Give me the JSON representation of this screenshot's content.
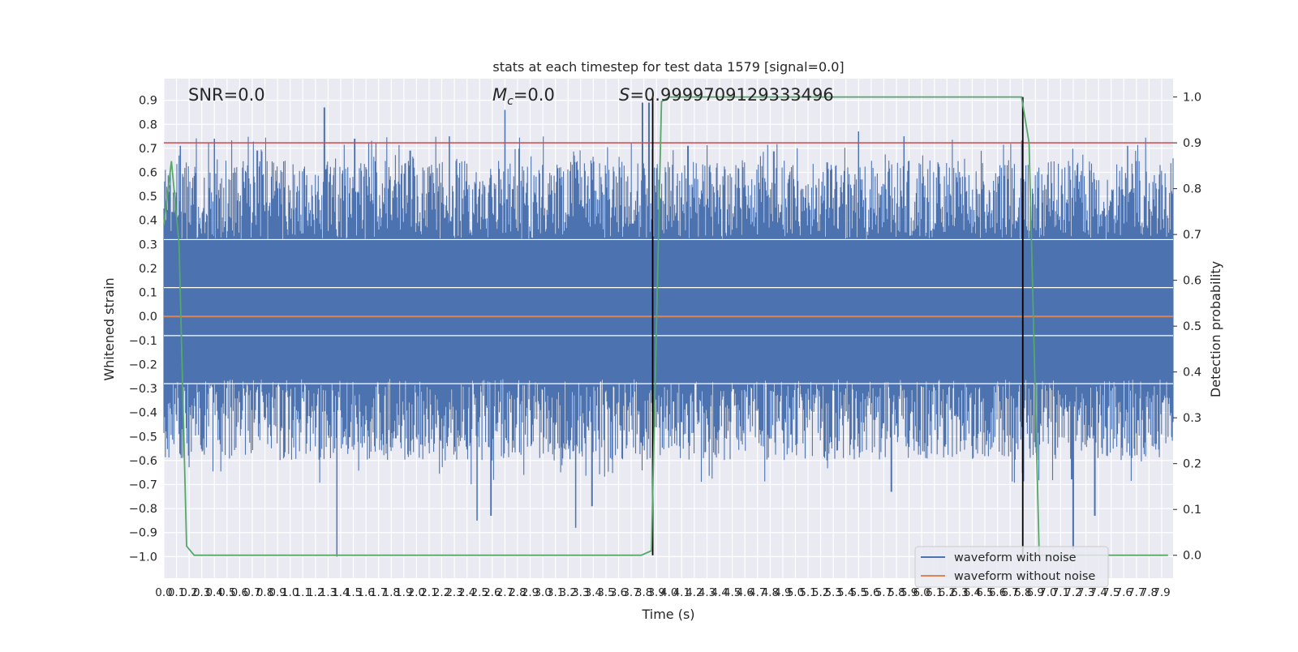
{
  "chart_data": {
    "type": "line",
    "title": "stats at each timestep for test data 1579 [signal=0.0]",
    "xlabel": "Time (s)",
    "ylabel_left": "Whitened strain",
    "ylabel_right": "Detection probability",
    "xlim": [
      0.0,
      7.99
    ],
    "ylim_left": [
      -1.09,
      0.99
    ],
    "ylim_right": [
      -0.05,
      1.04
    ],
    "x_ticks": [
      "0.0",
      "0.1",
      "0.2",
      "0.3",
      "0.4",
      "0.5",
      "0.6",
      "0.7",
      "0.8",
      "0.9",
      "1.0",
      "1.1",
      "1.2",
      "1.3",
      "1.4",
      "1.5",
      "1.6",
      "1.7",
      "1.8",
      "1.9",
      "2.0",
      "2.1",
      "2.2",
      "2.3",
      "2.4",
      "2.5",
      "2.6",
      "2.7",
      "2.8",
      "2.9",
      "3.0",
      "3.1",
      "3.2",
      "3.3",
      "3.4",
      "3.5",
      "3.6",
      "3.7",
      "3.8",
      "3.9",
      "4.0",
      "4.1",
      "4.2",
      "4.3",
      "4.4",
      "4.5",
      "4.6",
      "4.7",
      "4.8",
      "4.9",
      "5.0",
      "5.1",
      "5.2",
      "5.3",
      "5.4",
      "5.5",
      "5.6",
      "5.7",
      "5.8",
      "5.9",
      "6.0",
      "6.1",
      "6.2",
      "6.3",
      "6.4",
      "6.5",
      "6.6",
      "6.7",
      "6.8",
      "6.9",
      "7.0",
      "7.1",
      "7.2",
      "7.3",
      "7.4",
      "7.5",
      "7.6",
      "7.7",
      "7.8",
      "7.9"
    ],
    "y_ticks_left": [
      "0.9",
      "0.8",
      "0.7",
      "0.6",
      "0.5",
      "0.4",
      "0.3",
      "0.2",
      "0.1",
      "0.0",
      "−0.1",
      "−0.2",
      "−0.3",
      "−0.4",
      "−0.5",
      "−0.6",
      "−0.7",
      "−0.8",
      "−0.9",
      "−1.0"
    ],
    "y_ticks_right": [
      "1.0",
      "0.9",
      "0.8",
      "0.7",
      "0.6",
      "0.5",
      "0.4",
      "0.3",
      "0.2",
      "0.1",
      "0.0"
    ],
    "annotations": {
      "snr": "SNR=0.0",
      "mc": "M c=0.0",
      "mc_base": "M",
      "mc_sub": "c",
      "mc_rest": "=0.0",
      "s_label": "S",
      "s_rest": "=0.9999709129333496"
    },
    "threshold_right": 0.9,
    "detection_boundaries": [
      3.87,
      6.8
    ],
    "series": [
      {
        "name": "waveform with noise",
        "color": "#4c72b0",
        "envelope_peaks": [
          {
            "x": 0.13,
            "y": 0.71
          },
          {
            "x": 0.4,
            "y": 0.74
          },
          {
            "x": 0.74,
            "y": 0.69
          },
          {
            "x": 1.27,
            "y": 0.87
          },
          {
            "x": 1.51,
            "y": 0.74
          },
          {
            "x": 1.95,
            "y": 0.69
          },
          {
            "x": 2.26,
            "y": 0.75
          },
          {
            "x": 2.7,
            "y": 0.86
          },
          {
            "x": 3.79,
            "y": 0.89
          },
          {
            "x": 3.84,
            "y": 0.89
          },
          {
            "x": 4.15,
            "y": 0.71
          },
          {
            "x": 5.5,
            "y": 0.77
          },
          {
            "x": 5.86,
            "y": 0.75
          },
          {
            "x": 7.63,
            "y": 0.71
          }
        ],
        "envelope_troughs": [
          {
            "x": 1.37,
            "y": -1.0
          },
          {
            "x": 2.48,
            "y": -0.85
          },
          {
            "x": 2.59,
            "y": -0.83
          },
          {
            "x": 3.26,
            "y": -0.88
          },
          {
            "x": 3.39,
            "y": -0.79
          },
          {
            "x": 5.76,
            "y": -0.73
          },
          {
            "x": 7.2,
            "y": -0.97
          },
          {
            "x": 7.37,
            "y": -0.83
          }
        ]
      },
      {
        "name": "waveform without noise",
        "color": "#dd8452",
        "value": 0.0
      },
      {
        "name": "detection probability",
        "color": "#55a868",
        "x": [
          0.0,
          0.06,
          0.12,
          0.18,
          0.24,
          0.3,
          0.36,
          3.78,
          3.86,
          3.94,
          4.0,
          6.79,
          6.85,
          6.93,
          7.0,
          7.95
        ],
        "y": [
          0.72,
          0.86,
          0.68,
          0.02,
          0.0,
          0.0,
          0.0,
          0.0,
          0.01,
          0.99,
          1.0,
          1.0,
          0.9,
          0.0,
          0.0,
          0.0
        ]
      }
    ],
    "legend": {
      "placement": "lower-right",
      "entries": [
        {
          "label": "waveform with noise",
          "color": "#4c72b0"
        },
        {
          "label": "waveform without noise",
          "color": "#dd8452"
        }
      ]
    },
    "colors": {
      "axes_bg": "#eaeaf2",
      "grid": "#ffffff",
      "noise": "#4c72b0",
      "clean": "#dd8452",
      "probability": "#55a868",
      "threshold": "#c44e52",
      "boundary": "#000000"
    },
    "grid": true
  }
}
